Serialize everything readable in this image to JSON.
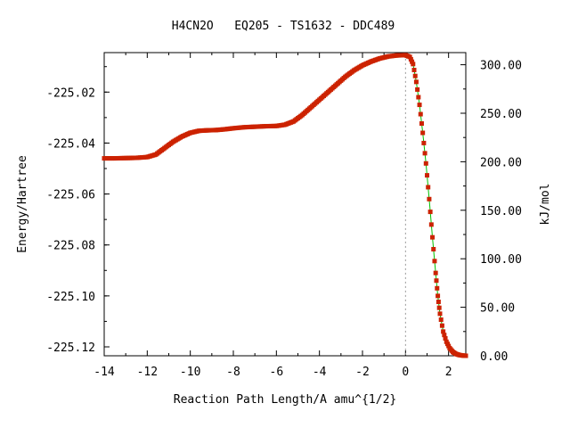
{
  "chart_data": {
    "type": "line",
    "title": "H4CN2O   EQ205 - TS1632 - DDC489",
    "xlabel": "Reaction Path Length/A amu^{1/2}",
    "ylabel": "Energy/Hartree",
    "y2label": "kJ/mol",
    "xlim": [
      -14,
      2.8
    ],
    "ylim": [
      -225.1235,
      -225.0045
    ],
    "y2lim": [
      0,
      312.5
    ],
    "x_ticks": [
      -14,
      -12,
      -10,
      -8,
      -6,
      -4,
      -2,
      0,
      2
    ],
    "x_tick_labels": [
      "-14",
      "-12",
      "-10",
      "-8",
      "-6",
      "-4",
      "-2",
      "0",
      "2"
    ],
    "y_ticks": [
      -225.12,
      -225.1,
      -225.08,
      -225.06,
      -225.04,
      -225.02
    ],
    "y_tick_labels": [
      "-225.12",
      "-225.10",
      "-225.08",
      "-225.06",
      "-225.04",
      "-225.02"
    ],
    "y2_ticks": [
      0,
      50,
      100,
      150,
      200,
      250,
      300
    ],
    "y2_tick_labels": [
      "0.00",
      "50.00",
      "100.00",
      "150.00",
      "200.00",
      "250.00",
      "300.00"
    ],
    "ts_marker_x": 0,
    "grid": false,
    "colors": {
      "line": "#00c000",
      "points": "#cc2200",
      "ts_marker": "#999999"
    },
    "series": [
      {
        "x": [
          -14.0,
          -13.5,
          -13.0,
          -12.5,
          -12.0,
          -11.6,
          -11.2,
          -10.8,
          -10.4,
          -10.0,
          -9.6,
          -9.2,
          -8.8,
          -8.4,
          -8.0,
          -7.5,
          -7.0,
          -6.5,
          -6.0,
          -5.6,
          -5.2,
          -4.8,
          -4.4,
          -4.0,
          -3.6,
          -3.2,
          -2.8,
          -2.4,
          -2.0,
          -1.6,
          -1.2,
          -0.8,
          -0.4,
          0.0,
          0.2,
          0.35,
          0.5,
          0.65,
          0.8,
          0.95,
          1.1,
          1.25,
          1.4,
          1.5,
          1.6,
          1.75,
          1.9,
          2.05,
          2.2,
          2.35,
          2.5,
          2.65,
          2.8
        ],
        "y": [
          -225.046,
          -225.046,
          -225.0459,
          -225.0458,
          -225.0455,
          -225.0445,
          -225.042,
          -225.0395,
          -225.0375,
          -225.036,
          -225.0352,
          -225.035,
          -225.0349,
          -225.0346,
          -225.0342,
          -225.0338,
          -225.0336,
          -225.0334,
          -225.0333,
          -225.0328,
          -225.0315,
          -225.029,
          -225.026,
          -225.023,
          -225.02,
          -225.017,
          -225.014,
          -225.0115,
          -225.0095,
          -225.008,
          -225.0068,
          -225.006,
          -225.0056,
          -225.0055,
          -225.0062,
          -225.009,
          -225.016,
          -225.025,
          -225.036,
          -225.048,
          -225.062,
          -225.077,
          -225.091,
          -225.1,
          -225.107,
          -225.114,
          -225.118,
          -225.1205,
          -225.122,
          -225.1228,
          -225.1232,
          -225.1234,
          -225.1235
        ]
      }
    ]
  }
}
